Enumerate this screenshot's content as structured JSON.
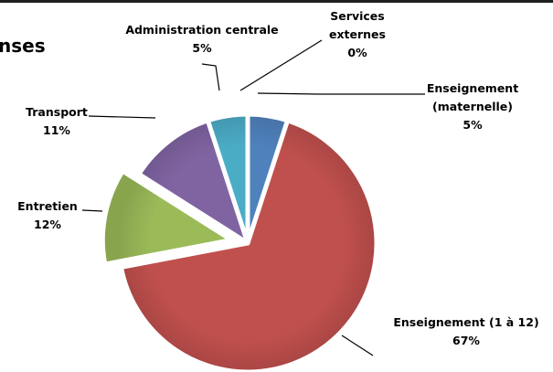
{
  "chart_data": {
    "type": "pie",
    "title": "nses",
    "legend": "none",
    "slices": [
      {
        "name": "Enseignement (maternelle)",
        "label_lines": [
          "Enseignement",
          "(maternelle)"
        ],
        "value": 5,
        "percent_label": "5%",
        "color": "#4f81bd",
        "exploded": false
      },
      {
        "name": "Enseignement (1 à 12)",
        "label_lines": [
          "Enseignement (1 à 12)"
        ],
        "value": 67,
        "percent_label": "67%",
        "color": "#c0504d",
        "exploded": false
      },
      {
        "name": "Entretien",
        "label_lines": [
          "Entretien"
        ],
        "value": 12,
        "percent_label": "12%",
        "color": "#9bbb59",
        "exploded": true
      },
      {
        "name": "Transport",
        "label_lines": [
          "Transport"
        ],
        "value": 11,
        "percent_label": "11%",
        "color": "#8064a2",
        "exploded": false
      },
      {
        "name": "Administration centrale",
        "label_lines": [
          "Administration centrale"
        ],
        "value": 5,
        "percent_label": "5%",
        "color": "#4bacc6",
        "exploded": false
      },
      {
        "name": "Services externes",
        "label_lines": [
          "Services",
          "externes"
        ],
        "value": 0,
        "percent_label": "0%",
        "color": "#f79646",
        "exploded": false
      }
    ]
  }
}
